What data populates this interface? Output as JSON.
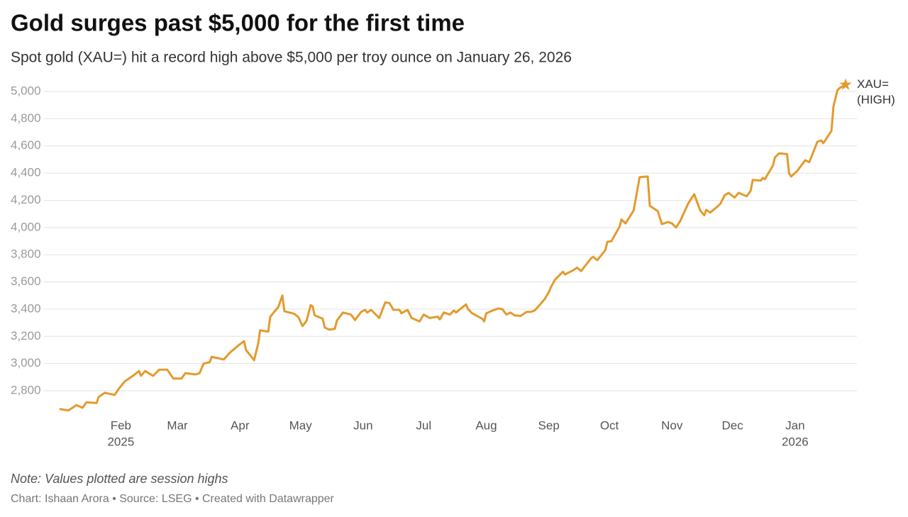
{
  "chart_data": {
    "type": "line",
    "title": "Gold surges past $5,000 for the first time",
    "subtitle": "Spot gold (XAU=) hit a record high above $5,000 per troy ounce on January 26, 2026",
    "note": "Note: Values plotted are session highs",
    "credit": "Chart: Ishaan Arora • Source: LSEG • Created with Datawrapper",
    "x": [
      "2025-01-02",
      "2025-01-06",
      "2025-01-10",
      "2025-01-13",
      "2025-01-15",
      "2025-01-20",
      "2025-01-21",
      "2025-01-24",
      "2025-01-29",
      "2025-01-31",
      "2025-02-03",
      "2025-02-07",
      "2025-02-10",
      "2025-02-11",
      "2025-02-13",
      "2025-02-17",
      "2025-02-20",
      "2025-02-24",
      "2025-02-27",
      "2025-03-03",
      "2025-03-05",
      "2025-03-10",
      "2025-03-12",
      "2025-03-14",
      "2025-03-17",
      "2025-03-18",
      "2025-03-24",
      "2025-03-27",
      "2025-03-31",
      "2025-04-03",
      "2025-04-04",
      "2025-04-08",
      "2025-04-10",
      "2025-04-11",
      "2025-04-15",
      "2025-04-16",
      "2025-04-20",
      "2025-04-22",
      "2025-04-23",
      "2025-04-28",
      "2025-04-30",
      "2025-05-02",
      "2025-05-04",
      "2025-05-06",
      "2025-05-07",
      "2025-05-08",
      "2025-05-12",
      "2025-05-13",
      "2025-05-15",
      "2025-05-18",
      "2025-05-19",
      "2025-05-22",
      "2025-05-26",
      "2025-05-28",
      "2025-05-31",
      "2025-06-02",
      "2025-06-03",
      "2025-06-05",
      "2025-06-09",
      "2025-06-12",
      "2025-06-14",
      "2025-06-16",
      "2025-06-19",
      "2025-06-20",
      "2025-06-23",
      "2025-06-25",
      "2025-06-29",
      "2025-07-01",
      "2025-07-04",
      "2025-07-08",
      "2025-07-09",
      "2025-07-11",
      "2025-07-14",
      "2025-07-16",
      "2025-07-17",
      "2025-07-22",
      "2025-07-23",
      "2025-07-25",
      "2025-07-30",
      "2025-07-31",
      "2025-08-01",
      "2025-08-05",
      "2025-08-07",
      "2025-08-09",
      "2025-08-11",
      "2025-08-13",
      "2025-08-15",
      "2025-08-18",
      "2025-08-21",
      "2025-08-23",
      "2025-08-25",
      "2025-08-28",
      "2025-08-30",
      "2025-09-01",
      "2025-09-02",
      "2025-09-04",
      "2025-09-08",
      "2025-09-09",
      "2025-09-13",
      "2025-09-15",
      "2025-09-17",
      "2025-09-22",
      "2025-09-23",
      "2025-09-25",
      "2025-09-29",
      "2025-09-30",
      "2025-10-02",
      "2025-10-06",
      "2025-10-07",
      "2025-10-09",
      "2025-10-13",
      "2025-10-14",
      "2025-10-16",
      "2025-10-20",
      "2025-10-21",
      "2025-10-25",
      "2025-10-27",
      "2025-10-30",
      "2025-11-01",
      "2025-11-03",
      "2025-11-05",
      "2025-11-09",
      "2025-11-12",
      "2025-11-15",
      "2025-11-17",
      "2025-11-18",
      "2025-11-20",
      "2025-11-24",
      "2025-11-25",
      "2025-11-27",
      "2025-11-29",
      "2025-12-02",
      "2025-12-04",
      "2025-12-08",
      "2025-12-10",
      "2025-12-11",
      "2025-12-15",
      "2025-12-16",
      "2025-12-17",
      "2025-12-21",
      "2025-12-22",
      "2025-12-24",
      "2025-12-28",
      "2025-12-29",
      "2025-12-30",
      "2026-01-02",
      "2026-01-06",
      "2026-01-08",
      "2026-01-12",
      "2026-01-14",
      "2026-01-15",
      "2026-01-19",
      "2026-01-20",
      "2026-01-22",
      "2026-01-23",
      "2026-01-26"
    ],
    "series": [
      {
        "name": "XAU= (HIGH)",
        "color": "#e39a2d",
        "values": [
          2665,
          2655,
          2695,
          2675,
          2715,
          2710,
          2755,
          2785,
          2770,
          2815,
          2870,
          2910,
          2945,
          2910,
          2945,
          2910,
          2955,
          2955,
          2890,
          2890,
          2930,
          2920,
          2930,
          3000,
          3010,
          3050,
          3030,
          3080,
          3130,
          3165,
          3100,
          3025,
          3145,
          3245,
          3235,
          3345,
          3415,
          3500,
          3385,
          3365,
          3340,
          3275,
          3315,
          3430,
          3420,
          3355,
          3330,
          3265,
          3250,
          3255,
          3315,
          3375,
          3360,
          3320,
          3380,
          3395,
          3375,
          3395,
          3335,
          3450,
          3445,
          3395,
          3395,
          3370,
          3395,
          3335,
          3310,
          3360,
          3335,
          3345,
          3325,
          3375,
          3360,
          3390,
          3375,
          3435,
          3400,
          3370,
          3330,
          3310,
          3370,
          3395,
          3405,
          3400,
          3360,
          3375,
          3355,
          3350,
          3380,
          3380,
          3390,
          3440,
          3475,
          3525,
          3560,
          3615,
          3675,
          3655,
          3685,
          3705,
          3680,
          3775,
          3785,
          3760,
          3835,
          3895,
          3900,
          4005,
          4060,
          4030,
          4125,
          4205,
          4370,
          4375,
          4160,
          4120,
          4025,
          4040,
          4030,
          4000,
          4045,
          4175,
          4245,
          4125,
          4090,
          4130,
          4110,
          4160,
          4175,
          4235,
          4255,
          4220,
          4255,
          4230,
          4270,
          4350,
          4345,
          4365,
          4355,
          4455,
          4515,
          4545,
          4540,
          4400,
          4375,
          4415,
          4495,
          4480,
          4630,
          4640,
          4620,
          4710,
          4890,
          5010,
          5025,
          5050
        ]
      }
    ],
    "xlim": [
      "2025-01-02",
      "2026-01-26"
    ],
    "xticks": [
      {
        "value": "2025-02-01",
        "label": "Feb",
        "year": "2025"
      },
      {
        "value": "2025-03-01",
        "label": "Mar"
      },
      {
        "value": "2025-04-01",
        "label": "Apr"
      },
      {
        "value": "2025-05-01",
        "label": "May"
      },
      {
        "value": "2025-06-01",
        "label": "Jun"
      },
      {
        "value": "2025-07-01",
        "label": "Jul"
      },
      {
        "value": "2025-08-01",
        "label": "Aug"
      },
      {
        "value": "2025-09-01",
        "label": "Sep"
      },
      {
        "value": "2025-10-01",
        "label": "Oct"
      },
      {
        "value": "2025-11-01",
        "label": "Nov"
      },
      {
        "value": "2025-12-01",
        "label": "Dec"
      },
      {
        "value": "2026-01-01",
        "label": "Jan",
        "year": "2026"
      }
    ],
    "ylim": [
      2650,
      5100
    ],
    "yticks": [
      {
        "value": 2800,
        "label": "2,800"
      },
      {
        "value": 3000,
        "label": "3,000"
      },
      {
        "value": 3200,
        "label": "3,200"
      },
      {
        "value": 3400,
        "label": "3,400"
      },
      {
        "value": 3600,
        "label": "3,600"
      },
      {
        "value": 3800,
        "label": "3,800"
      },
      {
        "value": 4000,
        "label": "4,000"
      },
      {
        "value": 4200,
        "label": "4,200"
      },
      {
        "value": 4400,
        "label": "4,400"
      },
      {
        "value": 4600,
        "label": "4,600"
      },
      {
        "value": 4800,
        "label": "4,800"
      },
      {
        "value": 5000,
        "label": "5,000"
      }
    ],
    "grid": true
  }
}
